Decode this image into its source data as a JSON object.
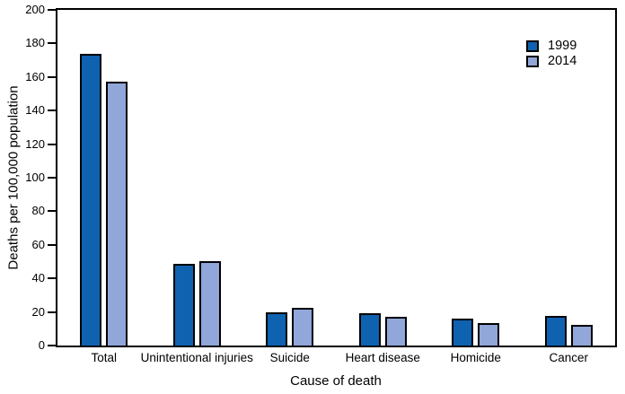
{
  "figure": {
    "background": "#ffffff",
    "text_color": "#000000"
  },
  "axes": {
    "xlabel": "Cause of death",
    "ylabel": "Deaths per 100,000 population"
  },
  "legend": {
    "position": "upper right",
    "items": [
      {
        "label": "1999",
        "color": "#0e62b0"
      },
      {
        "label": "2014",
        "color": "#91a6d9"
      }
    ]
  },
  "chart_data": {
    "type": "bar",
    "title": "",
    "xlabel": "Cause of death",
    "ylabel": "Deaths per 100,000 population",
    "categories": [
      "Total",
      "Unintentional injuries",
      "Suicide",
      "Heart disease",
      "Homicide",
      "Cancer"
    ],
    "series": [
      {
        "name": "1999",
        "color": "#0e62b0",
        "values": [
          174,
          48.5,
          20,
          19.5,
          16,
          17.5
        ]
      },
      {
        "name": "2014",
        "color": "#91a6d9",
        "values": [
          157,
          50.5,
          22.5,
          17,
          13.5,
          12.5
        ]
      }
    ],
    "ylim": [
      0,
      200
    ],
    "yticks": [
      0,
      20,
      40,
      60,
      80,
      100,
      120,
      140,
      160,
      180,
      200
    ],
    "grid": false,
    "legend_position": "upper right",
    "bar_edge_color": "#000000"
  }
}
